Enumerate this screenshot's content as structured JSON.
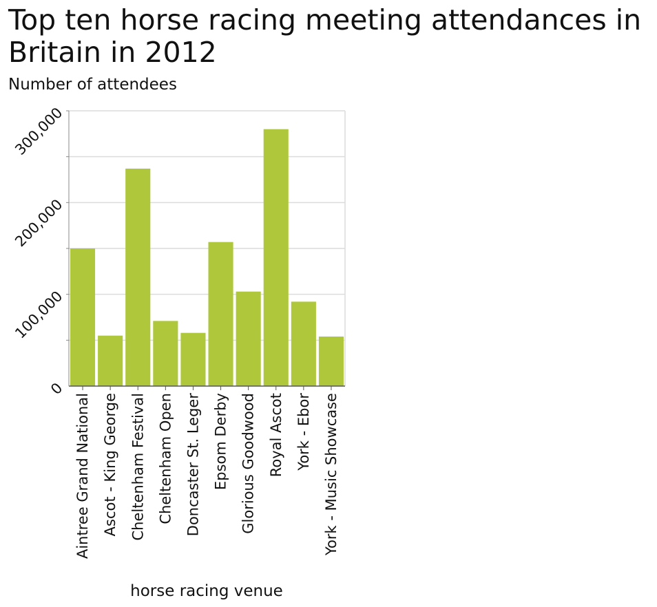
{
  "chart_data": {
    "type": "bar",
    "title": "Top ten horse racing meeting attendances in Britain in 2012",
    "ylabel": "Number of attendees",
    "xlabel": "horse racing venue",
    "categories": [
      "Aintree Grand National",
      "Ascot - King George",
      "Cheltenham Festival",
      "Cheltenham Open",
      "Doncaster St. Leger",
      "Epsom Derby",
      "Glorious Goodwood",
      "Royal Ascot",
      "York - Ebor",
      "York - Music Showcase"
    ],
    "values": [
      150000,
      55000,
      237000,
      71000,
      58000,
      157000,
      103000,
      280000,
      92000,
      54000
    ],
    "ylim": [
      0,
      300000
    ],
    "yticks": [
      0,
      100000,
      200000,
      300000
    ],
    "ytick_labels": [
      "0",
      "100,000",
      "200,000",
      "300,000"
    ],
    "grid": true,
    "bar_color": "#aec73b"
  }
}
